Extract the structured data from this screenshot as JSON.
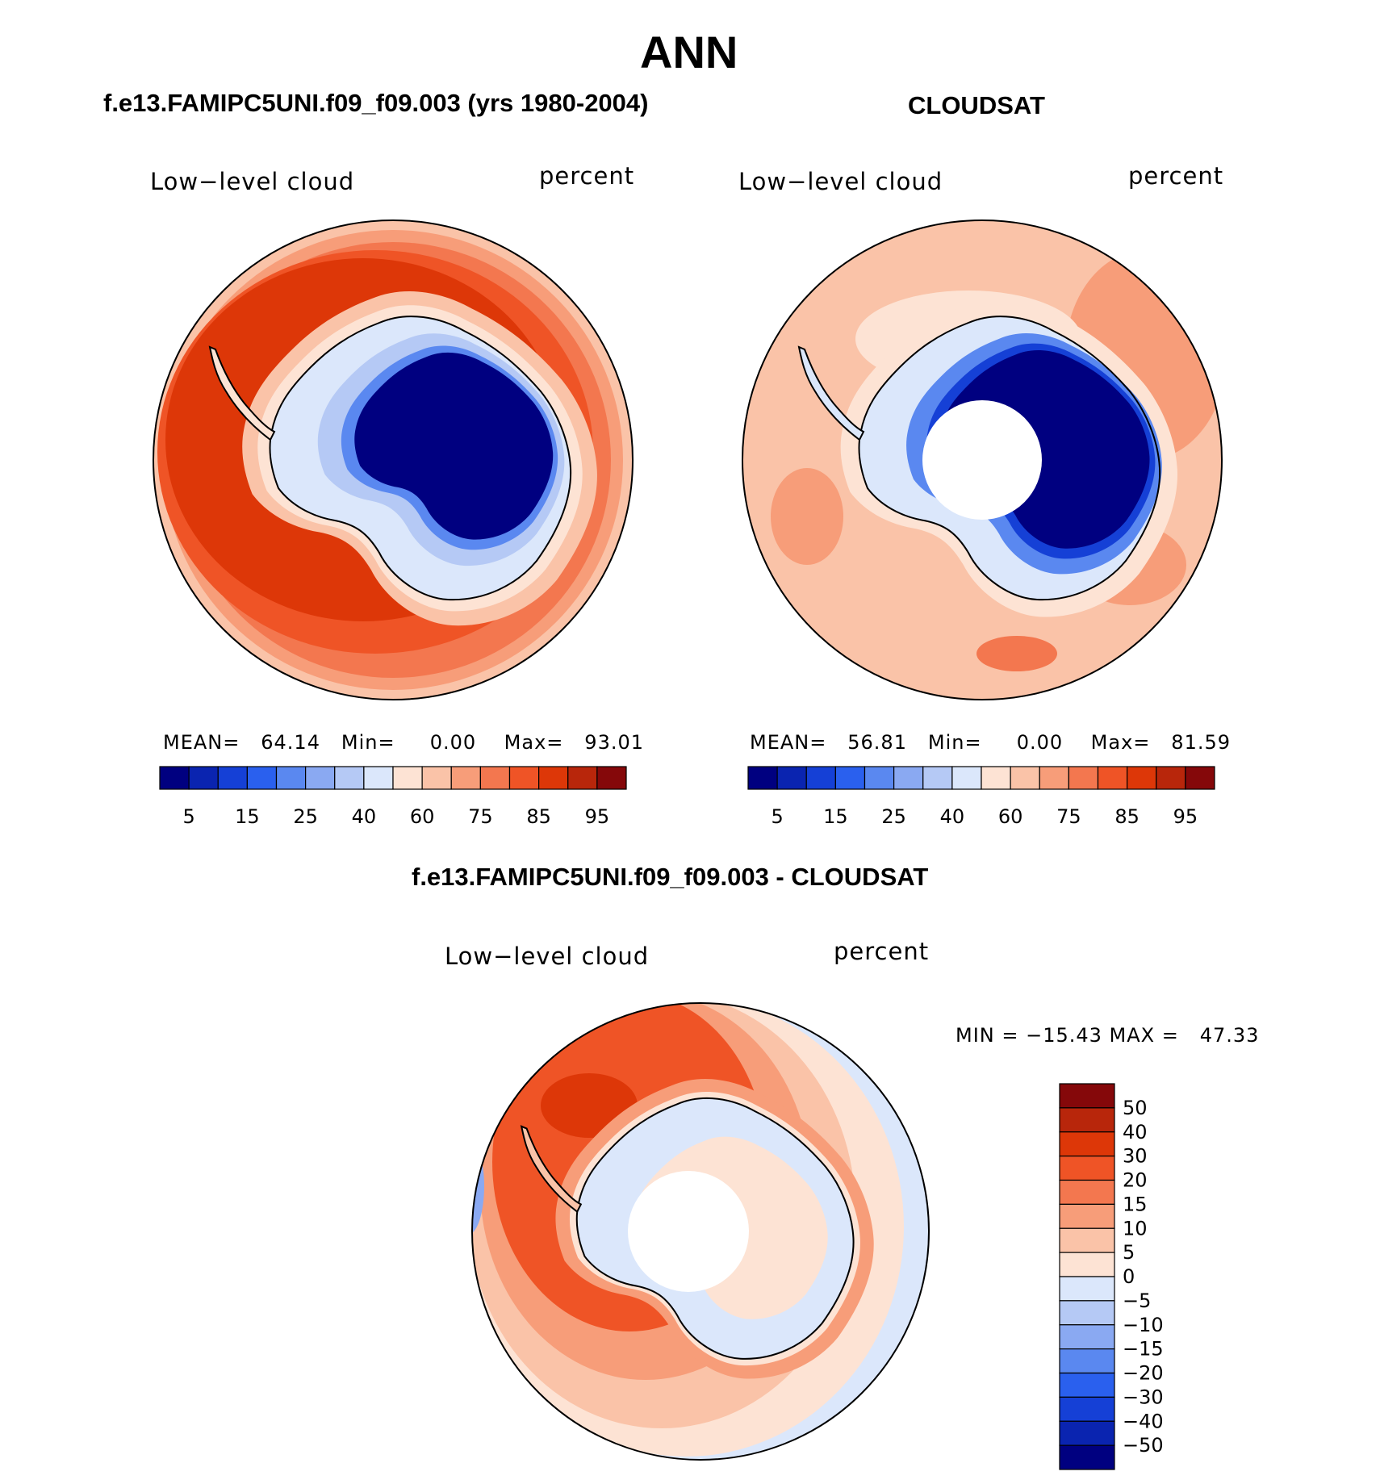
{
  "page_title": "ANN",
  "panel_top_left": {
    "title": "f.e13.FAMIPC5UNI.f09_f09.003 (yrs 1980-2004)",
    "variable": "Low−level cloud",
    "units": "percent",
    "stats": {
      "mean_label": "MEAN=",
      "mean": "64.14",
      "min_label": "Min=",
      "min": "0.00",
      "max_label": "Max=",
      "max": "93.01"
    }
  },
  "panel_top_right": {
    "title": "CLOUDSAT",
    "variable": "Low−level cloud",
    "units": "percent",
    "stats": {
      "mean_label": "MEAN=",
      "mean": "56.81",
      "min_label": "Min=",
      "min": "0.00",
      "max_label": "Max=",
      "max": "81.59"
    }
  },
  "panel_bottom": {
    "title": "f.e13.FAMIPC5UNI.f09_f09.003 - CLOUDSAT",
    "variable": "Low−level cloud",
    "units": "percent",
    "minmax_label": "MIN = −15.43 MAX =   47.33"
  },
  "horizontal_colorbar": {
    "tick_labels": [
      "5",
      "15",
      "25",
      "40",
      "60",
      "75",
      "85",
      "95"
    ],
    "colors": [
      "#000080",
      "#0a24b0",
      "#1540d6",
      "#2a60ee",
      "#5a88f0",
      "#8aa9f2",
      "#b5c9f5",
      "#dbe7fb",
      "#fde3d4",
      "#fac3a8",
      "#f79d79",
      "#f3774f",
      "#ef5426",
      "#dd3708",
      "#b8260b",
      "#85080a"
    ]
  },
  "vertical_colorbar": {
    "tick_labels": [
      "50",
      "40",
      "30",
      "20",
      "15",
      "10",
      "5",
      "0",
      "−5",
      "−10",
      "−15",
      "−20",
      "−30",
      "−40",
      "−50"
    ],
    "colors_top_to_bottom": [
      "#85080a",
      "#b8260b",
      "#dd3708",
      "#ef5426",
      "#f3774f",
      "#f79d79",
      "#fac3a8",
      "#fde3d4",
      "#dbe7fb",
      "#b5c9f5",
      "#8aa9f2",
      "#5a88f0",
      "#2a60ee",
      "#1540d6",
      "#0a24b0",
      "#000080"
    ]
  },
  "chart_data": [
    {
      "type": "heatmap",
      "title": "f.e13.FAMIPC5UNI.f09_f09.003 (yrs 1980-2004)",
      "variable": "Low-level cloud",
      "units": "percent",
      "projection": "south polar stereographic",
      "mean": 64.14,
      "min": 0.0,
      "max": 93.01,
      "levels": [
        5,
        10,
        15,
        20,
        25,
        30,
        40,
        50,
        60,
        70,
        75,
        80,
        85,
        90,
        95
      ]
    },
    {
      "type": "heatmap",
      "title": "CLOUDSAT",
      "variable": "Low-level cloud",
      "units": "percent",
      "projection": "south polar stereographic",
      "mean": 56.81,
      "min": 0.0,
      "max": 81.59,
      "levels": [
        5,
        10,
        15,
        20,
        25,
        30,
        40,
        50,
        60,
        70,
        75,
        80,
        85,
        90,
        95
      ]
    },
    {
      "type": "heatmap",
      "title": "f.e13.FAMIPC5UNI.f09_f09.003 - CLOUDSAT",
      "variable": "Low-level cloud",
      "units": "percent",
      "projection": "south polar stereographic",
      "min": -15.43,
      "max": 47.33,
      "levels": [
        -50,
        -40,
        -30,
        -20,
        -15,
        -10,
        -5,
        0,
        5,
        10,
        15,
        20,
        30,
        40,
        50
      ]
    }
  ]
}
